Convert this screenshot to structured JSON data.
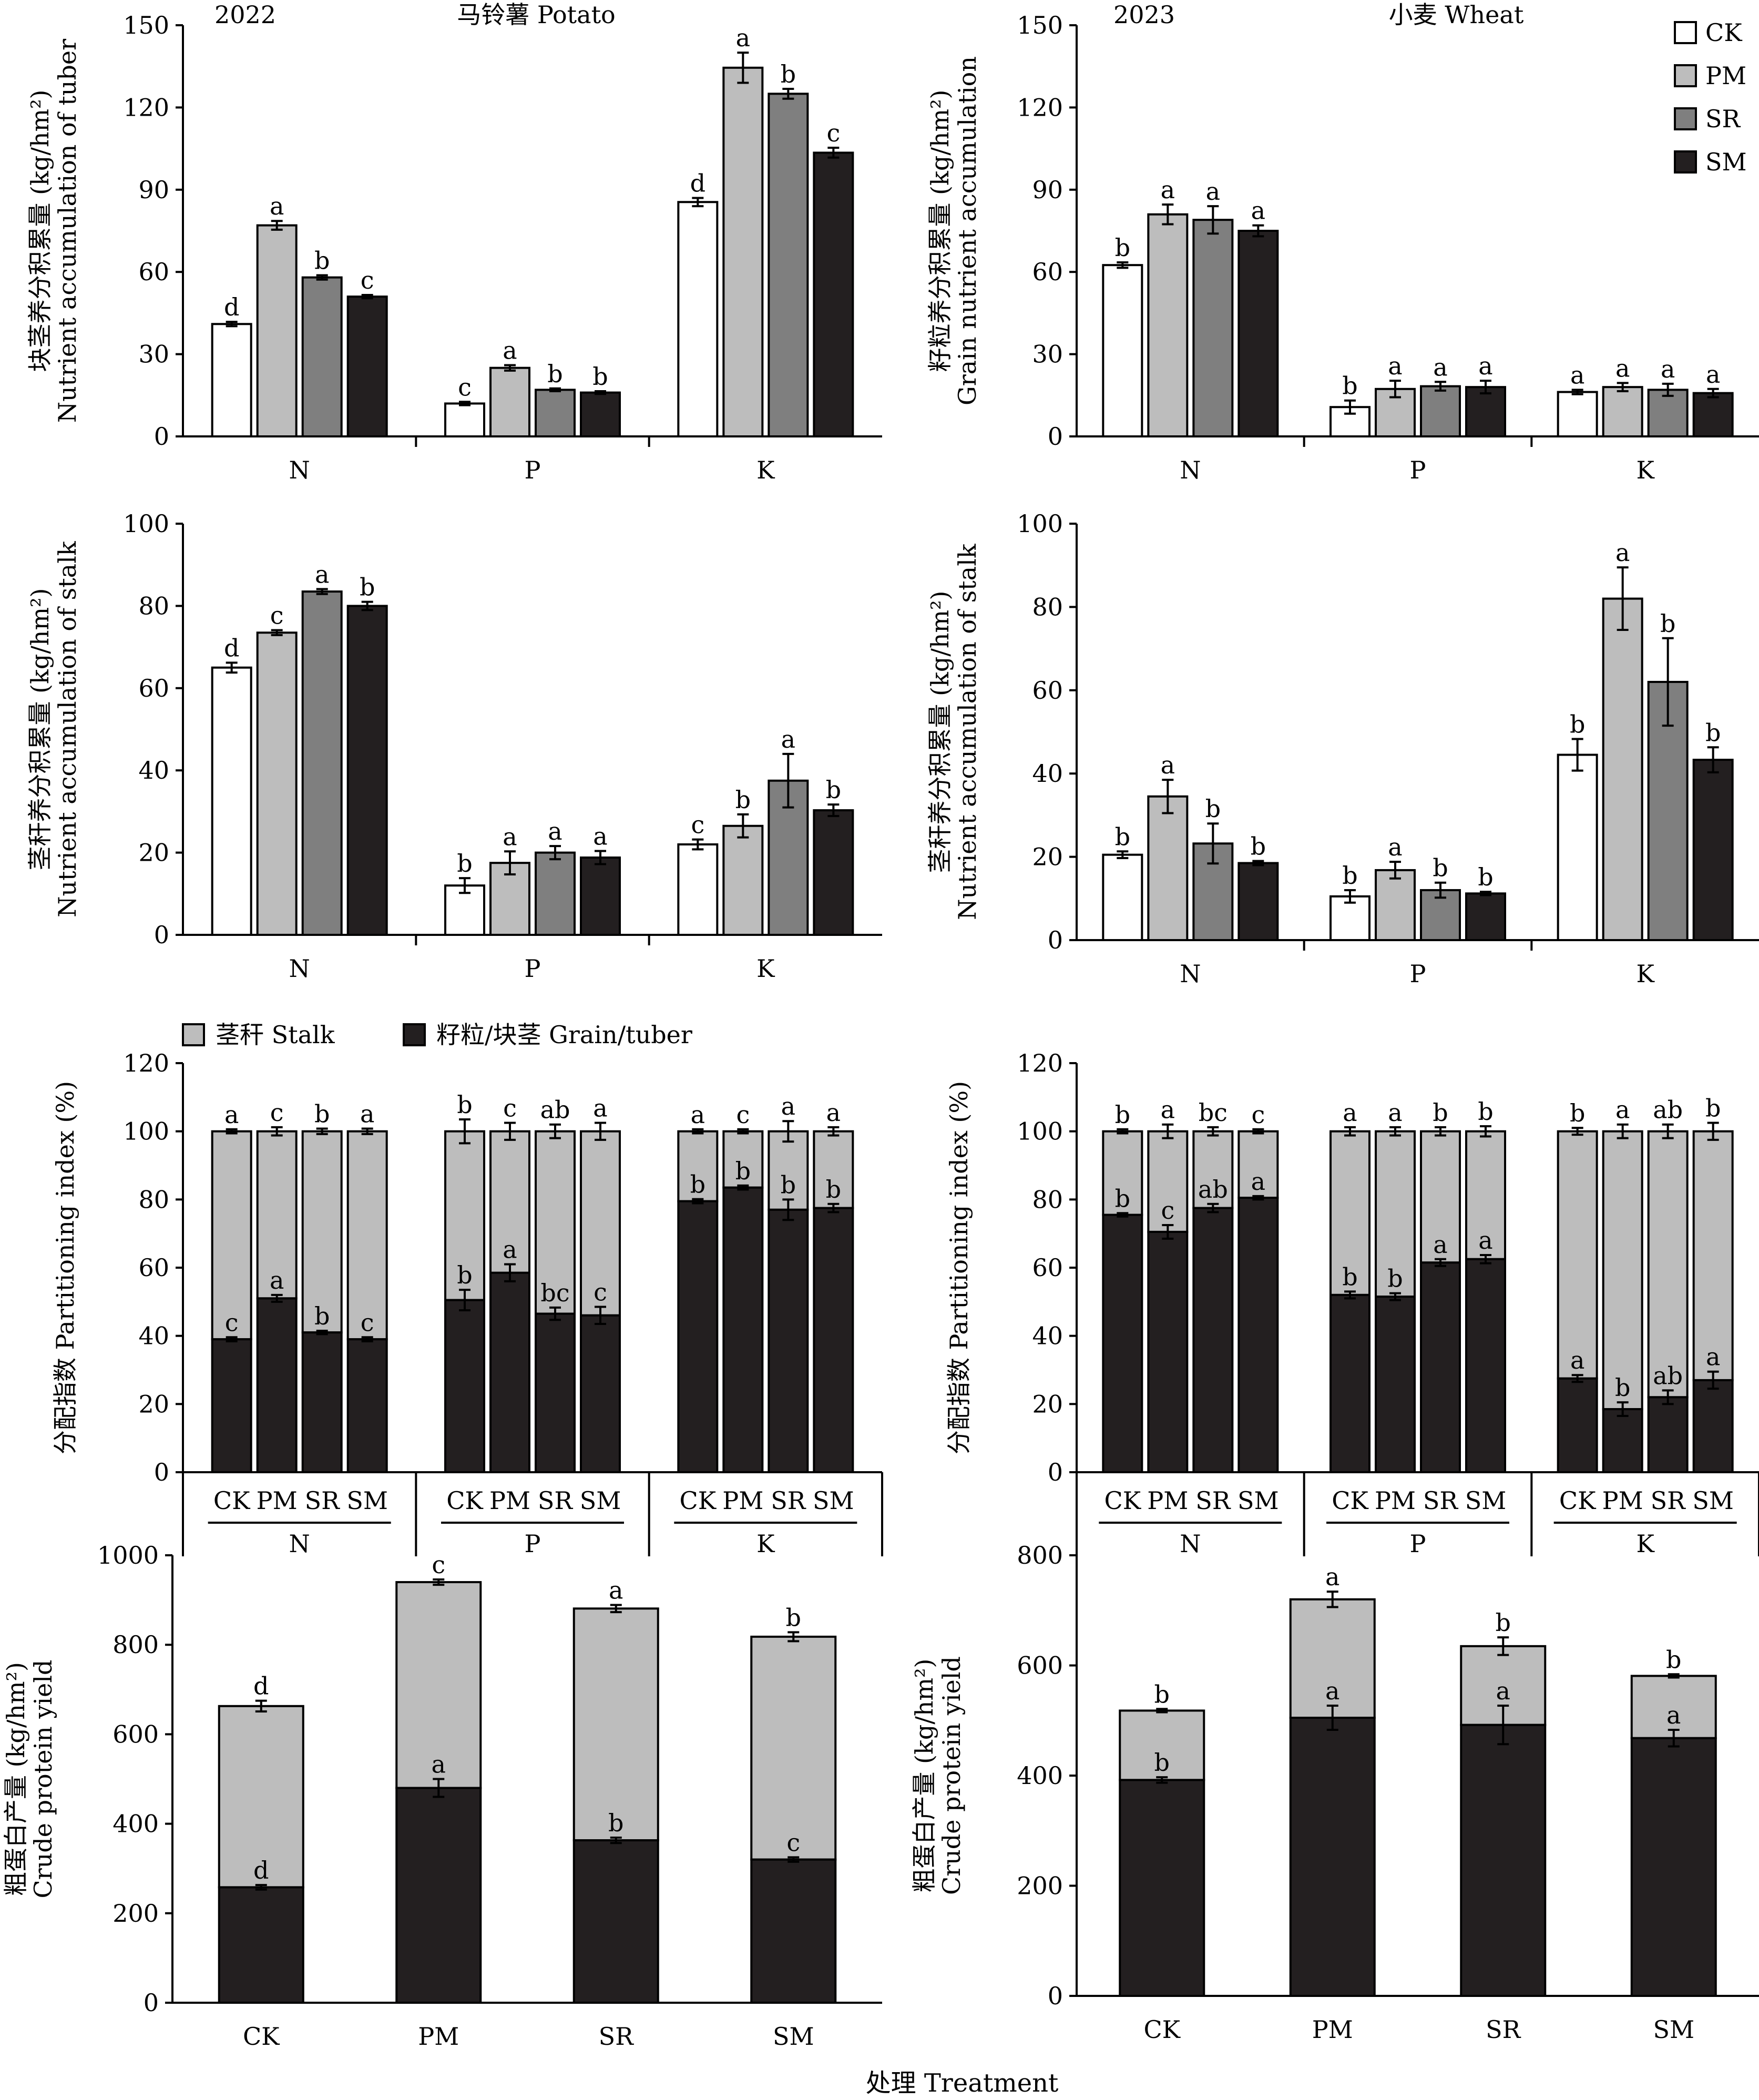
{
  "colors": {
    "CK": "#ffffff",
    "PM": "#bdbdbd",
    "SR": "#7f7f7f",
    "SM": "#231f20",
    "stalk": "#bdbdbd",
    "grain": "#231f20"
  },
  "legend": {
    "CK": "CK",
    "PM": "PM",
    "SR": "SR",
    "SM": "SM",
    "stalk": "茎秆 Stalk",
    "grain": "籽粒/块茎 Grain/tuber"
  },
  "xlabel": "处理 Treatment",
  "chart_data": [
    {
      "id": "potato-tuber",
      "type": "bar",
      "year": "2022",
      "crop": "马铃薯 Potato",
      "ylabel": [
        "块茎养分积累量 (kg/hm²)",
        "Nutrient accumulation of tuber"
      ],
      "ylim": [
        0,
        150
      ],
      "yticks": [
        0,
        30,
        60,
        90,
        120,
        150
      ],
      "categories": [
        "N",
        "P",
        "K"
      ],
      "legend": "top-right",
      "series": [
        {
          "name": "CK",
          "values": [
            41,
            12,
            85.5
          ],
          "err": [
            0.8,
            0.6,
            1.5
          ],
          "letters": [
            "d",
            "c",
            "d"
          ]
        },
        {
          "name": "PM",
          "values": [
            77,
            25,
            134.5
          ],
          "err": [
            1.6,
            1.0,
            5.5
          ],
          "letters": [
            "a",
            "a",
            "a"
          ]
        },
        {
          "name": "SR",
          "values": [
            58,
            17,
            125
          ],
          "err": [
            0.8,
            0.5,
            1.8
          ],
          "letters": [
            "b",
            "b",
            "b"
          ]
        },
        {
          "name": "SM",
          "values": [
            51,
            16,
            103.5
          ],
          "err": [
            0.6,
            0.5,
            1.8
          ],
          "letters": [
            "c",
            "b",
            "c"
          ]
        }
      ]
    },
    {
      "id": "wheat-grain",
      "type": "bar",
      "year": "2023",
      "crop": "小麦 Wheat",
      "ylabel": [
        "籽粒养分积累量 (kg/hm²)",
        "Grain nutrient accumulation"
      ],
      "ylim": [
        0,
        150
      ],
      "yticks": [
        0,
        30,
        60,
        90,
        120,
        150
      ],
      "categories": [
        "N",
        "P",
        "K"
      ],
      "series": [
        {
          "name": "CK",
          "values": [
            62.5,
            10.7,
            16.2
          ],
          "err": [
            1.0,
            2.4,
            0.8
          ],
          "letters": [
            "b",
            "b",
            "a"
          ]
        },
        {
          "name": "PM",
          "values": [
            81,
            17.3,
            18
          ],
          "err": [
            3.6,
            3.0,
            1.5
          ],
          "letters": [
            "a",
            "a",
            "a"
          ]
        },
        {
          "name": "SR",
          "values": [
            79,
            18.3,
            17
          ],
          "err": [
            5.0,
            1.6,
            2.2
          ],
          "letters": [
            "a",
            "a",
            "a"
          ]
        },
        {
          "name": "SM",
          "values": [
            75,
            18,
            15.8
          ],
          "err": [
            2.0,
            2.3,
            1.5
          ],
          "letters": [
            "a",
            "a",
            "a"
          ]
        }
      ]
    },
    {
      "id": "potato-stalk",
      "type": "bar",
      "ylabel": [
        "茎秆养分积累量 (kg/hm²)",
        "Nutrient accumulation of stalk"
      ],
      "ylim": [
        0,
        100
      ],
      "yticks": [
        0,
        20,
        40,
        60,
        80,
        100
      ],
      "categories": [
        "N",
        "P",
        "K"
      ],
      "series": [
        {
          "name": "CK",
          "values": [
            65,
            12,
            22
          ],
          "err": [
            1.2,
            1.8,
            1.2
          ],
          "letters": [
            "d",
            "b",
            "c"
          ]
        },
        {
          "name": "PM",
          "values": [
            73.5,
            17.5,
            26.5
          ],
          "err": [
            0.6,
            2.8,
            2.8
          ],
          "letters": [
            "c",
            "a",
            "b"
          ]
        },
        {
          "name": "SR",
          "values": [
            83.5,
            20,
            37.5
          ],
          "err": [
            0.6,
            1.6,
            6.5
          ],
          "letters": [
            "a",
            "a",
            "a"
          ]
        },
        {
          "name": "SM",
          "values": [
            80,
            18.8,
            30.3
          ],
          "err": [
            1.0,
            1.6,
            1.4
          ],
          "letters": [
            "b",
            "a",
            "b"
          ]
        }
      ]
    },
    {
      "id": "wheat-stalk",
      "type": "bar",
      "ylabel": [
        "茎秆养分积累量 (kg/hm²)",
        "Nutrient accumulation of stalk"
      ],
      "ylim": [
        0,
        100
      ],
      "yticks": [
        0,
        20,
        40,
        60,
        80,
        100
      ],
      "categories": [
        "N",
        "P",
        "K"
      ],
      "series": [
        {
          "name": "CK",
          "values": [
            20.5,
            10.5,
            44.5
          ],
          "err": [
            0.8,
            1.5,
            3.8
          ],
          "letters": [
            "b",
            "b",
            "b"
          ]
        },
        {
          "name": "PM",
          "values": [
            34.5,
            16.8,
            82
          ],
          "err": [
            4.0,
            2.0,
            7.5
          ],
          "letters": [
            "a",
            "a",
            "a"
          ]
        },
        {
          "name": "SR",
          "values": [
            23.2,
            12,
            62
          ],
          "err": [
            4.8,
            1.8,
            10.5
          ],
          "letters": [
            "b",
            "b",
            "b"
          ]
        },
        {
          "name": "SM",
          "values": [
            18.5,
            11.2,
            43.3
          ],
          "err": [
            0.5,
            0.4,
            3.0
          ],
          "letters": [
            "b",
            "b",
            "b"
          ]
        }
      ]
    },
    {
      "id": "potato-partition",
      "type": "bar",
      "stacked": true,
      "ylabel": [
        "分配指数 Partitioning index (%)"
      ],
      "ylim": [
        0,
        120
      ],
      "yticks": [
        0,
        20,
        40,
        60,
        80,
        100,
        120
      ],
      "groups": [
        "N",
        "P",
        "K"
      ],
      "categories": [
        "CK",
        "PM",
        "SR",
        "SM"
      ],
      "legend": "top",
      "series": [
        {
          "name": "籽粒/块茎 Grain/tuber",
          "values": [
            [
              39,
              51,
              41,
              39
            ],
            [
              50.5,
              58.5,
              46.5,
              46
            ],
            [
              79.5,
              83.5,
              77,
              77.5
            ]
          ],
          "err": [
            [
              0.6,
              1.0,
              0.5,
              0.6
            ],
            [
              3.0,
              2.5,
              1.8,
              2.5
            ],
            [
              0.6,
              0.6,
              3.0,
              1.2
            ]
          ],
          "letters": [
            [
              "c",
              "a",
              "b",
              "c"
            ],
            [
              "b",
              "a",
              "bc",
              "c"
            ],
            [
              "b",
              "b",
              "b",
              "b"
            ]
          ]
        },
        {
          "name": "茎秆 Stalk",
          "values": [
            [
              61,
              49,
              59,
              61
            ],
            [
              49.5,
              41.5,
              53.5,
              54
            ],
            [
              20.5,
              16.5,
              23,
              22.5
            ]
          ],
          "err": [
            [
              0.6,
              1.2,
              0.8,
              0.8
            ],
            [
              3.5,
              2.5,
              2.0,
              2.5
            ],
            [
              0.6,
              0.6,
              3.0,
              1.2
            ]
          ],
          "letters": [
            [
              "a",
              "c",
              "b",
              "a"
            ],
            [
              "b",
              "c",
              "ab",
              "a"
            ],
            [
              "a",
              "c",
              "a",
              "a"
            ]
          ]
        }
      ]
    },
    {
      "id": "wheat-partition",
      "type": "bar",
      "stacked": true,
      "ylabel": [
        "分配指数 Partitioning index (%)"
      ],
      "ylim": [
        0,
        120
      ],
      "yticks": [
        0,
        20,
        40,
        60,
        80,
        100,
        120
      ],
      "groups": [
        "N",
        "P",
        "K"
      ],
      "categories": [
        "CK",
        "PM",
        "SR",
        "SM"
      ],
      "series": [
        {
          "name": "籽粒/块茎 Grain/tuber",
          "values": [
            [
              75.5,
              70.5,
              77.5,
              80.5
            ],
            [
              52,
              51.5,
              61.5,
              62.5
            ],
            [
              27.5,
              18.5,
              22,
              27
            ]
          ],
          "err": [
            [
              0.5,
              2.0,
              1.2,
              0.5
            ],
            [
              1.0,
              1.0,
              1.0,
              1.2
            ],
            [
              1.0,
              2.0,
              2.0,
              2.5
            ]
          ],
          "letters": [
            [
              "b",
              "c",
              "ab",
              "a"
            ],
            [
              "b",
              "b",
              "a",
              "a"
            ],
            [
              "a",
              "b",
              "ab",
              "a"
            ]
          ]
        },
        {
          "name": "茎秆 Stalk",
          "values": [
            [
              24.5,
              29.5,
              22.5,
              19.5
            ],
            [
              48,
              48.5,
              38.5,
              37.5
            ],
            [
              72.5,
              81.5,
              78,
              73
            ]
          ],
          "err": [
            [
              0.6,
              2.0,
              1.2,
              0.6
            ],
            [
              1.2,
              1.2,
              1.2,
              1.5
            ],
            [
              1.0,
              2.0,
              2.0,
              2.5
            ]
          ],
          "letters": [
            [
              "b",
              "a",
              "bc",
              "c"
            ],
            [
              "a",
              "a",
              "b",
              "b"
            ],
            [
              "b",
              "a",
              "ab",
              "b"
            ]
          ]
        }
      ]
    },
    {
      "id": "potato-protein",
      "type": "bar",
      "stacked": true,
      "ylabel": [
        "粗蛋白产量 (kg/hm²)",
        "Crude protein yield"
      ],
      "ylim": [
        0,
        1000
      ],
      "yticks": [
        0,
        200,
        400,
        600,
        800,
        1000
      ],
      "categories": [
        "CK",
        "PM",
        "SR",
        "SM"
      ],
      "series": [
        {
          "name": "籽粒/块茎 Grain/tuber",
          "values": [
            258,
            480,
            363,
            320
          ],
          "err": [
            5,
            20,
            6,
            5
          ],
          "letters": [
            "d",
            "a",
            "b",
            "c"
          ]
        },
        {
          "name": "茎秆 Stalk",
          "values": [
            405,
            460,
            518,
            498
          ],
          "err": [
            12,
            6,
            8,
            10
          ],
          "letters": [
            "d",
            "c",
            "a",
            "b"
          ]
        }
      ]
    },
    {
      "id": "wheat-protein",
      "type": "bar",
      "stacked": true,
      "ylabel": [
        "粗蛋白产量 (kg/hm²)",
        "Crude protein yield"
      ],
      "ylim": [
        0,
        800
      ],
      "yticks": [
        0,
        200,
        400,
        600,
        800
      ],
      "categories": [
        "CK",
        "PM",
        "SR",
        "SM"
      ],
      "series": [
        {
          "name": "籽粒/块茎 Grain/tuber",
          "values": [
            392,
            505,
            492,
            468
          ],
          "err": [
            5,
            22,
            35,
            15
          ],
          "letters": [
            "b",
            "a",
            "a",
            "a"
          ]
        },
        {
          "name": "茎秆 Stalk",
          "values": [
            126,
            215,
            143,
            113
          ],
          "err": [
            3,
            14,
            16,
            3
          ],
          "letters": [
            "b",
            "a",
            "b",
            "b"
          ]
        }
      ]
    }
  ]
}
